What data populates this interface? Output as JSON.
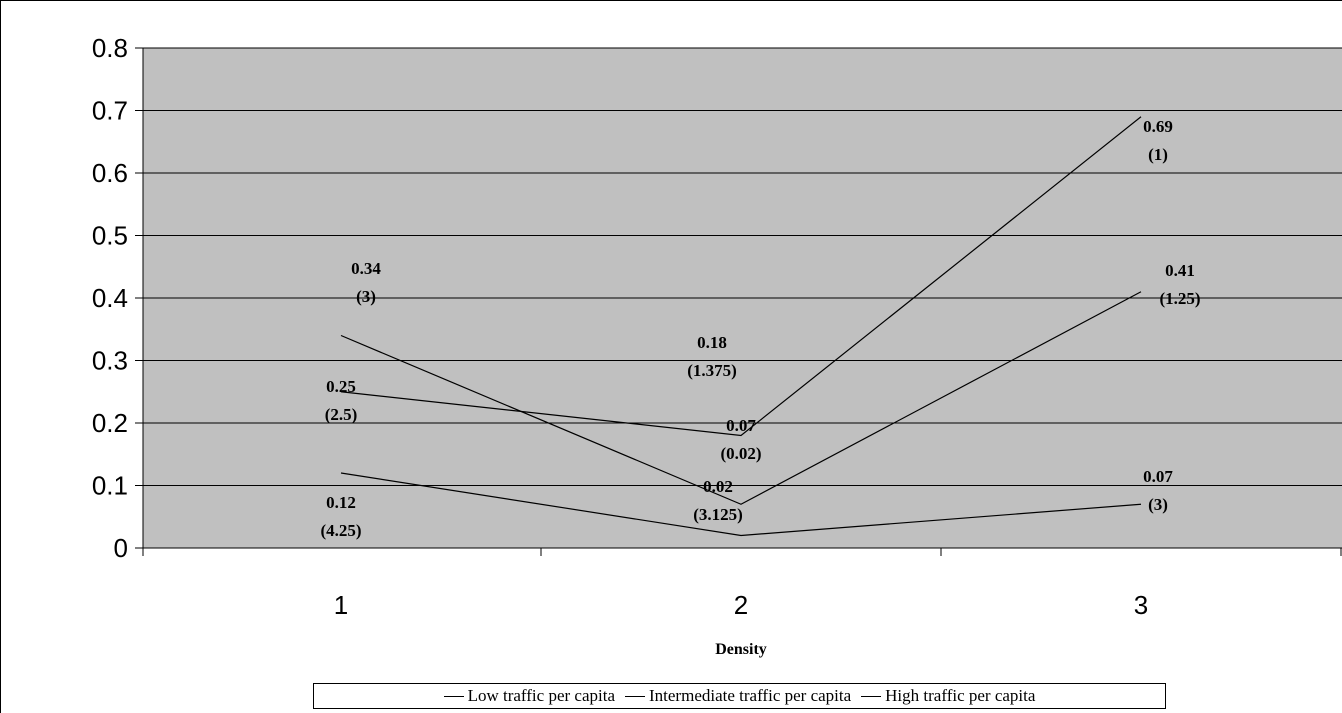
{
  "chart_data": {
    "type": "line",
    "xlabel": "Density",
    "ylabel": "",
    "title": "",
    "x": [
      1,
      2,
      3
    ],
    "ylim": [
      0,
      0.8
    ],
    "yticks": [
      "0",
      "0.1",
      "0.2",
      "0.3",
      "0.4",
      "0.5",
      "0.6",
      "0.7",
      "0.8"
    ],
    "xticks": [
      "1",
      "2",
      "3"
    ],
    "grid": true,
    "plot_background": "#c0c0c0",
    "line_color": "#000000",
    "legend_position": "bottom",
    "series": [
      {
        "name": "Low traffic per capita",
        "values": [
          0.25,
          0.18,
          0.69
        ],
        "labels": [
          {
            "value": "0.25",
            "ratio": "(2.5)"
          },
          {
            "value": "0.18",
            "ratio": "(1.375)"
          },
          {
            "value": "0.69",
            "ratio": "(1)"
          }
        ]
      },
      {
        "name": "Intermediate traffic per capita",
        "values": [
          0.34,
          0.07,
          0.41
        ],
        "labels": [
          {
            "value": "0.34",
            "ratio": "(3)"
          },
          {
            "value": "0.07",
            "ratio": "(0.02)"
          },
          {
            "value": "0.41",
            "ratio": "(1.25)"
          }
        ]
      },
      {
        "name": "High traffic per capita",
        "values": [
          0.12,
          0.02,
          0.07
        ],
        "labels": [
          {
            "value": "0.12",
            "ratio": "(4.25)"
          },
          {
            "value": "0.02",
            "ratio": "(3.125)"
          },
          {
            "value": "0.07",
            "ratio": "(3)"
          }
        ]
      }
    ]
  }
}
